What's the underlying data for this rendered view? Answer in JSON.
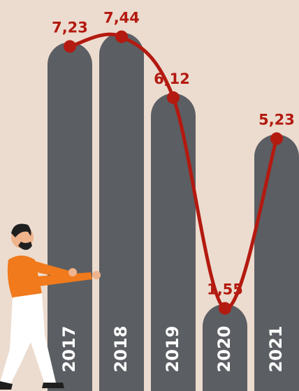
{
  "chart_data": {
    "type": "bar-line",
    "categories": [
      "2017",
      "2018",
      "2019",
      "2020",
      "2021"
    ],
    "values": [
      7.23,
      7.44,
      6.12,
      1.55,
      5.23
    ],
    "value_labels": [
      "7,23",
      "7,44",
      "6,12",
      "1,55",
      "5,23"
    ],
    "bar_color": "#5b5e63",
    "line_color": "#b31a10"
  }
}
